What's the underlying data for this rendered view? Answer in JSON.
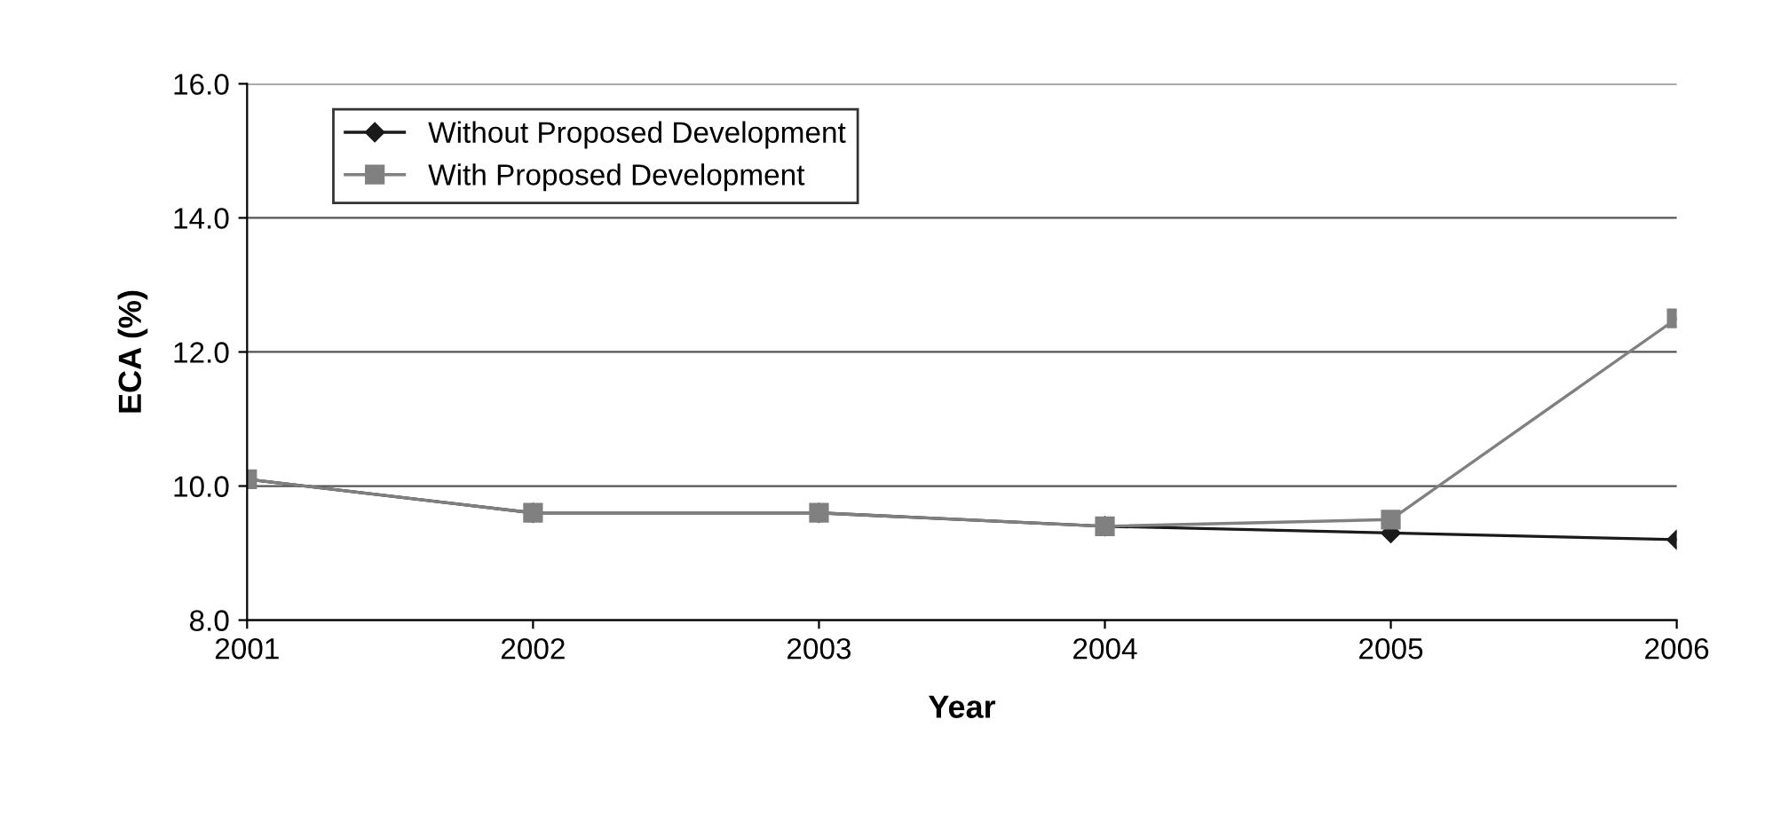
{
  "chart_data": {
    "type": "line",
    "xlabel": "Year",
    "ylabel": "ECA (%)",
    "categories": [
      "2001",
      "2002",
      "2003",
      "2004",
      "2005",
      "2006"
    ],
    "series": [
      {
        "name": "Without Proposed Development",
        "color": "#1a1a1a",
        "marker": "diamond",
        "values": [
          10.1,
          9.6,
          9.6,
          9.4,
          9.3,
          9.2
        ]
      },
      {
        "name": "With Proposed Development",
        "color": "#808080",
        "marker": "square",
        "values": [
          10.1,
          9.6,
          9.6,
          9.4,
          9.5,
          12.5
        ]
      }
    ],
    "ylim": [
      8.0,
      16.0
    ],
    "yticks": [
      {
        "value": 8,
        "label": "8.0"
      },
      {
        "value": 10,
        "label": "10.0"
      },
      {
        "value": 12,
        "label": "12.0"
      },
      {
        "value": 14,
        "label": "14.0"
      },
      {
        "value": 16,
        "label": "16.0"
      }
    ],
    "grid": "y",
    "legend": "top left",
    "line_style": "solid"
  }
}
